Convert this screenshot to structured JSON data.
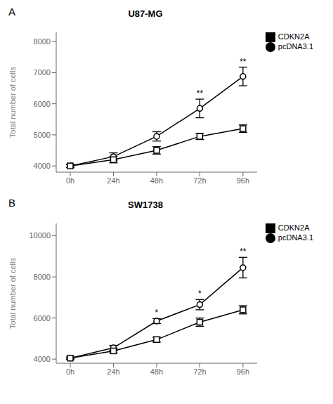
{
  "chart_data": [
    {
      "type": "line",
      "title": "U87-MG",
      "panel_label": "A",
      "y_label": "Total number of cells",
      "categories": [
        "0h",
        "24h",
        "48h",
        "72h",
        "96h"
      ],
      "series": [
        {
          "name": "pcDNA3.1",
          "color": "#000000",
          "marker": "circle",
          "values": [
            4000,
            4300,
            4950,
            5850,
            6880
          ],
          "errors": [
            50,
            120,
            150,
            300,
            300
          ]
        },
        {
          "name": "CDKN2A",
          "color": "#000000",
          "marker": "square",
          "values": [
            4000,
            4200,
            4500,
            4950,
            5200
          ],
          "errors": [
            50,
            100,
            120,
            100,
            120
          ]
        }
      ],
      "ylim": [
        3800,
        8300
      ],
      "yticks": [
        4000,
        5000,
        6000,
        7000,
        8000
      ],
      "annotations": [
        {
          "category": "72h",
          "text": "**"
        },
        {
          "category": "96h",
          "text": "**"
        }
      ],
      "grid": false,
      "legend": "right"
    },
    {
      "type": "line",
      "title": "SW1738",
      "panel_label": "B",
      "y_label": "Total number of cells",
      "categories": [
        "0h",
        "24h",
        "48h",
        "72h",
        "96h"
      ],
      "series": [
        {
          "name": "pcDNA3.1",
          "color": "#000000",
          "marker": "circle",
          "values": [
            4050,
            4550,
            5850,
            6650,
            8450
          ],
          "errors": [
            50,
            120,
            120,
            250,
            500
          ]
        },
        {
          "name": "CDKN2A",
          "color": "#000000",
          "marker": "square",
          "values": [
            4050,
            4400,
            4950,
            5800,
            6400
          ],
          "errors": [
            50,
            100,
            120,
            200,
            200
          ]
        }
      ],
      "ylim": [
        3800,
        10600
      ],
      "yticks": [
        4000,
        6000,
        8000,
        10000
      ],
      "annotations": [
        {
          "category": "48h",
          "text": "*"
        },
        {
          "category": "72h",
          "text": "*"
        },
        {
          "category": "96h",
          "text": "**"
        }
      ],
      "grid": false,
      "legend": "right"
    }
  ]
}
